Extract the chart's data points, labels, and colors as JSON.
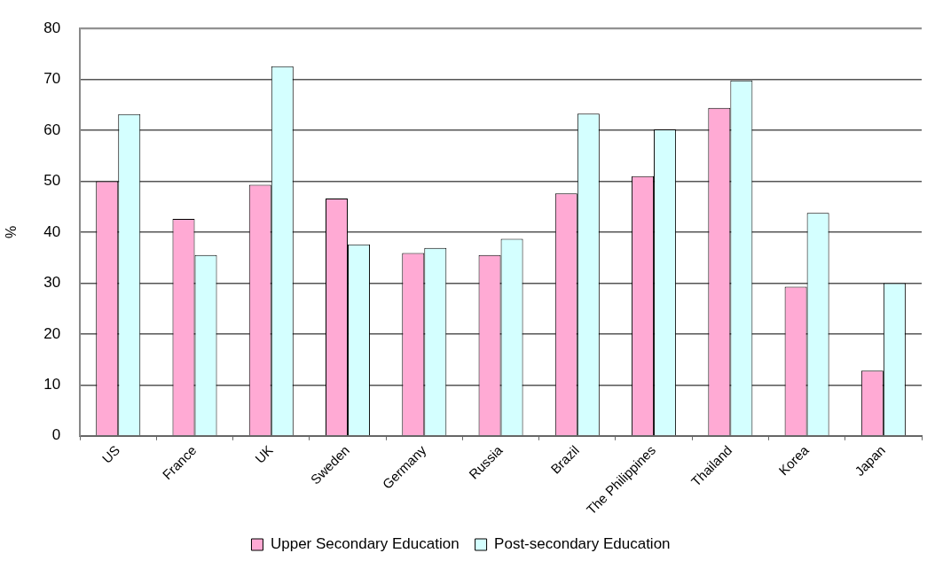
{
  "chart_data": {
    "type": "bar",
    "ylabel": "%",
    "categories": [
      "US",
      "France",
      "UK",
      "Sweden",
      "Germany",
      "Russia",
      "Brazil",
      "The Philippines",
      "Thailand",
      "Korea",
      "Japan"
    ],
    "series": [
      {
        "name": "Upper Secondary Education",
        "color": "#ffaad4",
        "values": [
          50,
          42.6,
          49.3,
          46.6,
          35.9,
          35.5,
          47.6,
          51.0,
          64.4,
          29.3,
          12.8
        ]
      },
      {
        "name": "Post-secondary Education",
        "color": "#d4ffff",
        "values": [
          63.2,
          35.5,
          72.6,
          37.6,
          36.9,
          38.7,
          63.3,
          60.2,
          69.8,
          43.8,
          30.0
        ]
      }
    ],
    "ylim": [
      0,
      80
    ],
    "yticks": [
      0,
      10,
      20,
      30,
      40,
      50,
      60,
      70,
      80
    ],
    "grid": "y",
    "legend": "bottom"
  }
}
